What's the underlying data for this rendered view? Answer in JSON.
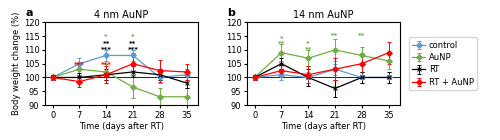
{
  "chart_data": [
    {
      "type": "line",
      "title": "4 nm AuNP",
      "panel_label": "a",
      "x_label": "Time (days after RT)",
      "y_label": "Body weight change (%)",
      "x": [
        0,
        7,
        14,
        21,
        28,
        35
      ],
      "series": [
        {
          "name": "control",
          "color": "#5b9bd5",
          "marker": "diamond",
          "values": [
            100,
            105,
            108,
            108,
            100,
            101
          ],
          "yerr": [
            1,
            2,
            2,
            2,
            2,
            2
          ]
        },
        {
          "name": "AuNP",
          "color": "#70ad47",
          "marker": "diamond",
          "values": [
            100,
            103,
            102,
            96.5,
            93,
            93
          ],
          "yerr": [
            1,
            2,
            3,
            4,
            3,
            3
          ]
        },
        {
          "name": "RT",
          "color": "#000000",
          "marker": "x",
          "values": [
            100,
            100,
            101,
            102,
            101,
            98
          ],
          "yerr": [
            1,
            1.5,
            2,
            2,
            2,
            2
          ]
        },
        {
          "name": "RT + AuNP",
          "color": "#ff0000",
          "marker": "diamond",
          "values": [
            100,
            98.5,
            101,
            105,
            102.5,
            102
          ],
          "yerr": [
            1,
            2,
            3,
            4,
            4,
            3
          ]
        }
      ],
      "reference_line": 100,
      "annotations": [
        {
          "text": "***",
          "x": 7,
          "y": 103.5,
          "color": "#ff0000"
        },
        {
          "text": "***",
          "x": 14,
          "y": 103.5,
          "color": "#ff0000"
        },
        {
          "text": "**",
          "x": 14,
          "y": 111,
          "color": "#000000"
        },
        {
          "text": "**",
          "x": 21,
          "y": 111,
          "color": "#000000"
        },
        {
          "text": "***",
          "x": 14,
          "y": 109,
          "color": "#000000"
        },
        {
          "text": "***",
          "x": 21,
          "y": 109,
          "color": "#000000"
        },
        {
          "text": "*",
          "x": 14,
          "y": 113.5,
          "color": "#70ad47"
        },
        {
          "text": "*",
          "x": 21,
          "y": 113.5,
          "color": "#70ad47"
        }
      ],
      "xlim": [
        -2,
        38
      ],
      "xticks": [
        0,
        7,
        14,
        21,
        28,
        35
      ],
      "ylim": [
        90,
        120
      ],
      "yticks": [
        90,
        95,
        100,
        105,
        110,
        115,
        120
      ]
    },
    {
      "type": "line",
      "title": "14 nm AuNP",
      "panel_label": "b",
      "x_label": "Time (days after RT)",
      "x": [
        0,
        7,
        14,
        21,
        28,
        35
      ],
      "series": [
        {
          "name": "control",
          "color": "#5b9bd5",
          "marker": "diamond",
          "values": [
            100,
            101,
            100,
            103,
            100,
            100
          ],
          "yerr": [
            1,
            2,
            2,
            2,
            2,
            2
          ]
        },
        {
          "name": "AuNP",
          "color": "#70ad47",
          "marker": "diamond",
          "values": [
            100,
            109,
            107,
            110,
            108,
            106
          ],
          "yerr": [
            1,
            3,
            3,
            4,
            3,
            3
          ]
        },
        {
          "name": "RT",
          "color": "#000000",
          "marker": "x",
          "values": [
            100,
            105,
            100,
            96,
            100,
            100
          ],
          "yerr": [
            1,
            2,
            3,
            3,
            2,
            2
          ]
        },
        {
          "name": "RT + AuNP",
          "color": "#ff0000",
          "marker": "diamond",
          "values": [
            100,
            102.5,
            101,
            103,
            105,
            109
          ],
          "yerr": [
            1,
            2,
            3,
            4,
            4,
            4
          ]
        }
      ],
      "reference_line": 100,
      "annotations": [
        {
          "text": "*",
          "x": 7,
          "y": 113,
          "color": "#70ad47"
        },
        {
          "text": "**",
          "x": 7,
          "y": 111,
          "color": "#70ad47"
        },
        {
          "text": "*",
          "x": 14,
          "y": 111,
          "color": "#70ad47"
        },
        {
          "text": "**",
          "x": 14,
          "y": 109,
          "color": "#70ad47"
        },
        {
          "text": "**",
          "x": 21,
          "y": 114,
          "color": "#70ad47"
        },
        {
          "text": "**",
          "x": 28,
          "y": 114,
          "color": "#70ad47"
        }
      ],
      "xlim": [
        -2,
        38
      ],
      "xticks": [
        0,
        7,
        14,
        21,
        28,
        35
      ],
      "ylim": [
        90,
        120
      ],
      "yticks": [
        90,
        95,
        100,
        105,
        110,
        115,
        120
      ],
      "legend": "right"
    }
  ]
}
